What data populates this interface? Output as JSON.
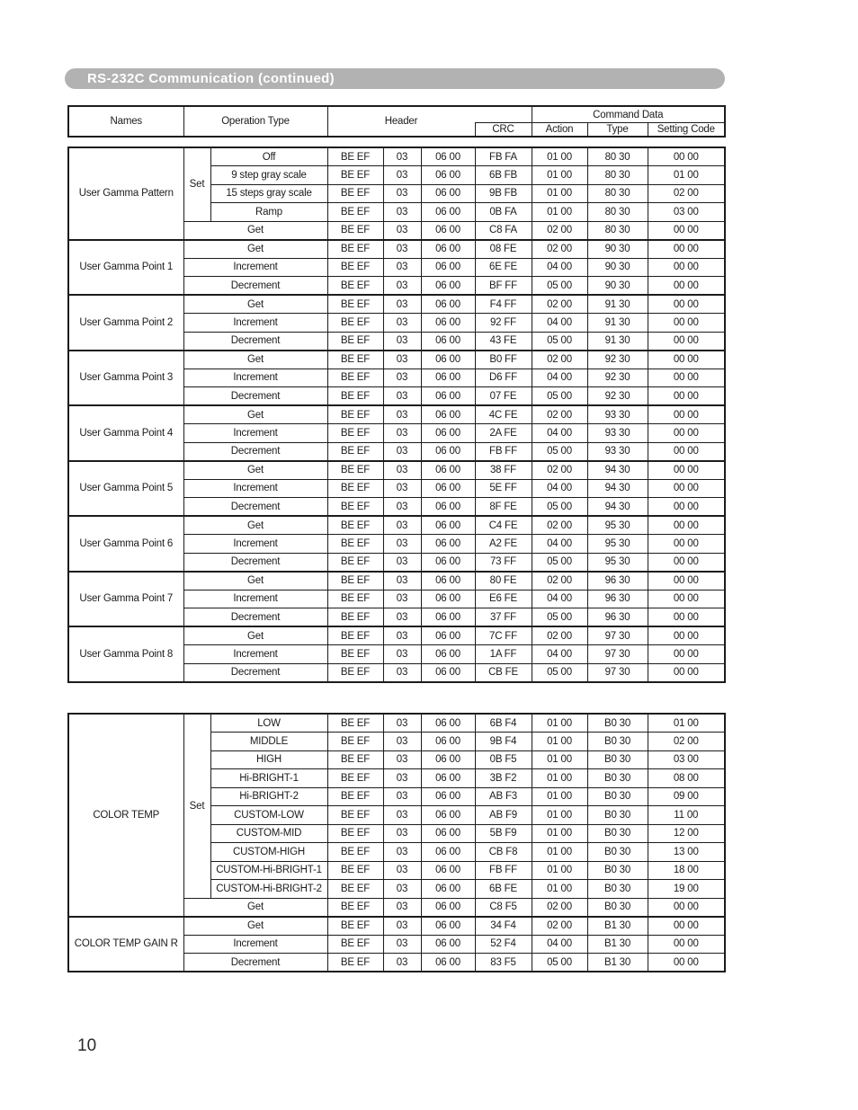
{
  "banner": {
    "title": "RS-232C Communication (continued)"
  },
  "page": {
    "number": "10"
  },
  "colors": {
    "banner_bg": "#b2b2b2",
    "banner_text": "#ffffff",
    "table_border": "#1c1c1c",
    "text": "#1c1c1c"
  },
  "table": {
    "columns": {
      "names": "Names",
      "operation_type": "Operation Type",
      "header": "Header",
      "command_data": "Command Data",
      "crc": "CRC",
      "action": "Action",
      "type": "Type",
      "setting_code": "Setting Code"
    },
    "blocks": [
      {
        "sections": [
          {
            "name": "User Gamma Pattern",
            "set_label": "Set",
            "set_options": [
              {
                "label": "Off",
                "cells": [
                  "BE EF",
                  "03",
                  "06 00",
                  "FB FA",
                  "01 00",
                  "80 30",
                  "00 00"
                ]
              },
              {
                "label": "9 step gray scale",
                "cells": [
                  "BE EF",
                  "03",
                  "06 00",
                  "6B FB",
                  "01 00",
                  "80 30",
                  "01 00"
                ]
              },
              {
                "label": "15 steps gray scale",
                "cells": [
                  "BE EF",
                  "03",
                  "06 00",
                  "9B FB",
                  "01 00",
                  "80 30",
                  "02 00"
                ]
              },
              {
                "label": "Ramp",
                "cells": [
                  "BE EF",
                  "03",
                  "06 00",
                  "0B FA",
                  "01 00",
                  "80 30",
                  "03 00"
                ]
              }
            ],
            "ops": [
              {
                "label": "Get",
                "cells": [
                  "BE EF",
                  "03",
                  "06 00",
                  "C8 FA",
                  "02 00",
                  "80 30",
                  "00 00"
                ]
              }
            ]
          },
          {
            "name": "User Gamma Point 1",
            "set_options": [],
            "ops": [
              {
                "label": "Get",
                "cells": [
                  "BE EF",
                  "03",
                  "06 00",
                  "08 FE",
                  "02 00",
                  "90 30",
                  "00 00"
                ]
              },
              {
                "label": "Increment",
                "cells": [
                  "BE EF",
                  "03",
                  "06 00",
                  "6E FE",
                  "04 00",
                  "90 30",
                  "00 00"
                ]
              },
              {
                "label": "Decrement",
                "cells": [
                  "BE EF",
                  "03",
                  "06 00",
                  "BF FF",
                  "05 00",
                  "90 30",
                  "00 00"
                ]
              }
            ]
          },
          {
            "name": "User Gamma Point 2",
            "set_options": [],
            "ops": [
              {
                "label": "Get",
                "cells": [
                  "BE EF",
                  "03",
                  "06 00",
                  "F4 FF",
                  "02 00",
                  "91 30",
                  "00 00"
                ]
              },
              {
                "label": "Increment",
                "cells": [
                  "BE EF",
                  "03",
                  "06 00",
                  "92 FF",
                  "04 00",
                  "91 30",
                  "00 00"
                ]
              },
              {
                "label": "Decrement",
                "cells": [
                  "BE EF",
                  "03",
                  "06 00",
                  "43 FE",
                  "05 00",
                  "91 30",
                  "00 00"
                ]
              }
            ]
          },
          {
            "name": "User Gamma Point 3",
            "set_options": [],
            "ops": [
              {
                "label": "Get",
                "cells": [
                  "BE EF",
                  "03",
                  "06 00",
                  "B0 FF",
                  "02 00",
                  "92 30",
                  "00 00"
                ]
              },
              {
                "label": "Increment",
                "cells": [
                  "BE EF",
                  "03",
                  "06 00",
                  "D6 FF",
                  "04 00",
                  "92 30",
                  "00 00"
                ]
              },
              {
                "label": "Decrement",
                "cells": [
                  "BE EF",
                  "03",
                  "06 00",
                  "07 FE",
                  "05 00",
                  "92 30",
                  "00 00"
                ]
              }
            ]
          },
          {
            "name": "User Gamma Point 4",
            "set_options": [],
            "ops": [
              {
                "label": "Get",
                "cells": [
                  "BE EF",
                  "03",
                  "06 00",
                  "4C FE",
                  "02 00",
                  "93 30",
                  "00 00"
                ]
              },
              {
                "label": "Increment",
                "cells": [
                  "BE EF",
                  "03",
                  "06 00",
                  "2A FE",
                  "04 00",
                  "93 30",
                  "00 00"
                ]
              },
              {
                "label": "Decrement",
                "cells": [
                  "BE EF",
                  "03",
                  "06 00",
                  "FB FF",
                  "05 00",
                  "93 30",
                  "00 00"
                ]
              }
            ]
          },
          {
            "name": "User Gamma Point 5",
            "set_options": [],
            "ops": [
              {
                "label": "Get",
                "cells": [
                  "BE EF",
                  "03",
                  "06 00",
                  "38 FF",
                  "02 00",
                  "94 30",
                  "00 00"
                ]
              },
              {
                "label": "Increment",
                "cells": [
                  "BE EF",
                  "03",
                  "06 00",
                  "5E FF",
                  "04 00",
                  "94 30",
                  "00 00"
                ]
              },
              {
                "label": "Decrement",
                "cells": [
                  "BE EF",
                  "03",
                  "06 00",
                  "8F FE",
                  "05 00",
                  "94 30",
                  "00 00"
                ]
              }
            ]
          },
          {
            "name": "User Gamma Point 6",
            "set_options": [],
            "ops": [
              {
                "label": "Get",
                "cells": [
                  "BE EF",
                  "03",
                  "06 00",
                  "C4 FE",
                  "02 00",
                  "95 30",
                  "00 00"
                ]
              },
              {
                "label": "Increment",
                "cells": [
                  "BE EF",
                  "03",
                  "06 00",
                  "A2 FE",
                  "04 00",
                  "95 30",
                  "00 00"
                ]
              },
              {
                "label": "Decrement",
                "cells": [
                  "BE EF",
                  "03",
                  "06 00",
                  "73 FF",
                  "05 00",
                  "95 30",
                  "00 00"
                ]
              }
            ]
          },
          {
            "name": "User Gamma Point 7",
            "set_options": [],
            "ops": [
              {
                "label": "Get",
                "cells": [
                  "BE EF",
                  "03",
                  "06 00",
                  "80 FE",
                  "02 00",
                  "96 30",
                  "00 00"
                ]
              },
              {
                "label": "Increment",
                "cells": [
                  "BE EF",
                  "03",
                  "06 00",
                  "E6 FE",
                  "04 00",
                  "96 30",
                  "00 00"
                ]
              },
              {
                "label": "Decrement",
                "cells": [
                  "BE EF",
                  "03",
                  "06 00",
                  "37 FF",
                  "05 00",
                  "96 30",
                  "00 00"
                ]
              }
            ]
          },
          {
            "name": "User Gamma Point 8",
            "set_options": [],
            "ops": [
              {
                "label": "Get",
                "cells": [
                  "BE EF",
                  "03",
                  "06 00",
                  "7C FF",
                  "02 00",
                  "97 30",
                  "00 00"
                ]
              },
              {
                "label": "Increment",
                "cells": [
                  "BE EF",
                  "03",
                  "06 00",
                  "1A FF",
                  "04 00",
                  "97 30",
                  "00 00"
                ]
              },
              {
                "label": "Decrement",
                "cells": [
                  "BE EF",
                  "03",
                  "06 00",
                  "CB FE",
                  "05 00",
                  "97 30",
                  "00 00"
                ]
              }
            ]
          }
        ]
      },
      {
        "sections": [
          {
            "name": "COLOR TEMP",
            "set_label": "Set",
            "set_options": [
              {
                "label": "LOW",
                "cells": [
                  "BE EF",
                  "03",
                  "06 00",
                  "6B F4",
                  "01 00",
                  "B0 30",
                  "01 00"
                ]
              },
              {
                "label": "MIDDLE",
                "cells": [
                  "BE EF",
                  "03",
                  "06 00",
                  "9B F4",
                  "01 00",
                  "B0 30",
                  "02 00"
                ]
              },
              {
                "label": "HIGH",
                "cells": [
                  "BE EF",
                  "03",
                  "06 00",
                  "0B F5",
                  "01 00",
                  "B0 30",
                  "03 00"
                ]
              },
              {
                "label": "Hi-BRIGHT-1",
                "cells": [
                  "BE EF",
                  "03",
                  "06 00",
                  "3B F2",
                  "01 00",
                  "B0 30",
                  "08 00"
                ]
              },
              {
                "label": "Hi-BRIGHT-2",
                "cells": [
                  "BE EF",
                  "03",
                  "06 00",
                  "AB F3",
                  "01 00",
                  "B0 30",
                  "09 00"
                ]
              },
              {
                "label": "CUSTOM-LOW",
                "cells": [
                  "BE EF",
                  "03",
                  "06 00",
                  "AB F9",
                  "01 00",
                  "B0 30",
                  "11 00"
                ]
              },
              {
                "label": "CUSTOM-MID",
                "cells": [
                  "BE EF",
                  "03",
                  "06 00",
                  "5B F9",
                  "01 00",
                  "B0 30",
                  "12 00"
                ]
              },
              {
                "label": "CUSTOM-HIGH",
                "cells": [
                  "BE EF",
                  "03",
                  "06 00",
                  "CB F8",
                  "01 00",
                  "B0 30",
                  "13 00"
                ]
              },
              {
                "label": "CUSTOM-Hi-BRIGHT-1",
                "cells": [
                  "BE EF",
                  "03",
                  "06 00",
                  "FB FF",
                  "01 00",
                  "B0 30",
                  "18 00"
                ]
              },
              {
                "label": "CUSTOM-Hi-BRIGHT-2",
                "cells": [
                  "BE EF",
                  "03",
                  "06 00",
                  "6B FE",
                  "01 00",
                  "B0 30",
                  "19 00"
                ]
              }
            ],
            "ops": [
              {
                "label": "Get",
                "cells": [
                  "BE EF",
                  "03",
                  "06 00",
                  "C8 F5",
                  "02 00",
                  "B0 30",
                  "00 00"
                ]
              }
            ]
          },
          {
            "name": "COLOR TEMP GAIN R",
            "set_options": [],
            "ops": [
              {
                "label": "Get",
                "cells": [
                  "BE EF",
                  "03",
                  "06 00",
                  "34 F4",
                  "02 00",
                  "B1 30",
                  "00 00"
                ]
              },
              {
                "label": "Increment",
                "cells": [
                  "BE EF",
                  "03",
                  "06 00",
                  "52 F4",
                  "04 00",
                  "B1 30",
                  "00 00"
                ]
              },
              {
                "label": "Decrement",
                "cells": [
                  "BE EF",
                  "03",
                  "06 00",
                  "83 F5",
                  "05 00",
                  "B1 30",
                  "00 00"
                ]
              }
            ]
          }
        ]
      }
    ]
  }
}
